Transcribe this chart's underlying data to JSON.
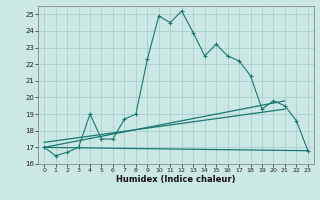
{
  "xlabel": "Humidex (Indice chaleur)",
  "bg_color": "#cce8e4",
  "line_color": "#1a7870",
  "grid_color": "#aacfcb",
  "xlim": [
    -0.5,
    23.5
  ],
  "ylim": [
    16,
    25.5
  ],
  "xticks": [
    0,
    1,
    2,
    3,
    4,
    5,
    6,
    7,
    8,
    9,
    10,
    11,
    12,
    13,
    14,
    15,
    16,
    17,
    18,
    19,
    20,
    21,
    22,
    23
  ],
  "yticks": [
    16,
    17,
    18,
    19,
    20,
    21,
    22,
    23,
    24,
    25
  ],
  "line1_x": [
    0,
    1,
    2,
    3,
    4,
    5,
    6,
    7,
    8,
    9,
    10,
    11,
    12,
    13,
    14,
    15,
    16,
    17,
    18,
    19,
    20,
    21,
    22,
    23
  ],
  "line1_y": [
    17.0,
    16.5,
    16.7,
    17.0,
    19.0,
    17.5,
    17.5,
    18.7,
    19.0,
    22.3,
    24.9,
    24.5,
    25.2,
    23.9,
    22.5,
    23.2,
    22.5,
    22.2,
    21.3,
    19.3,
    19.8,
    19.5,
    18.6,
    16.8
  ],
  "line2_x": [
    0,
    23
  ],
  "line2_y": [
    17.0,
    16.8
  ],
  "line3_x": [
    0,
    21
  ],
  "line3_y": [
    17.0,
    19.8
  ],
  "line4_x": [
    0,
    21
  ],
  "line4_y": [
    17.3,
    19.3
  ]
}
